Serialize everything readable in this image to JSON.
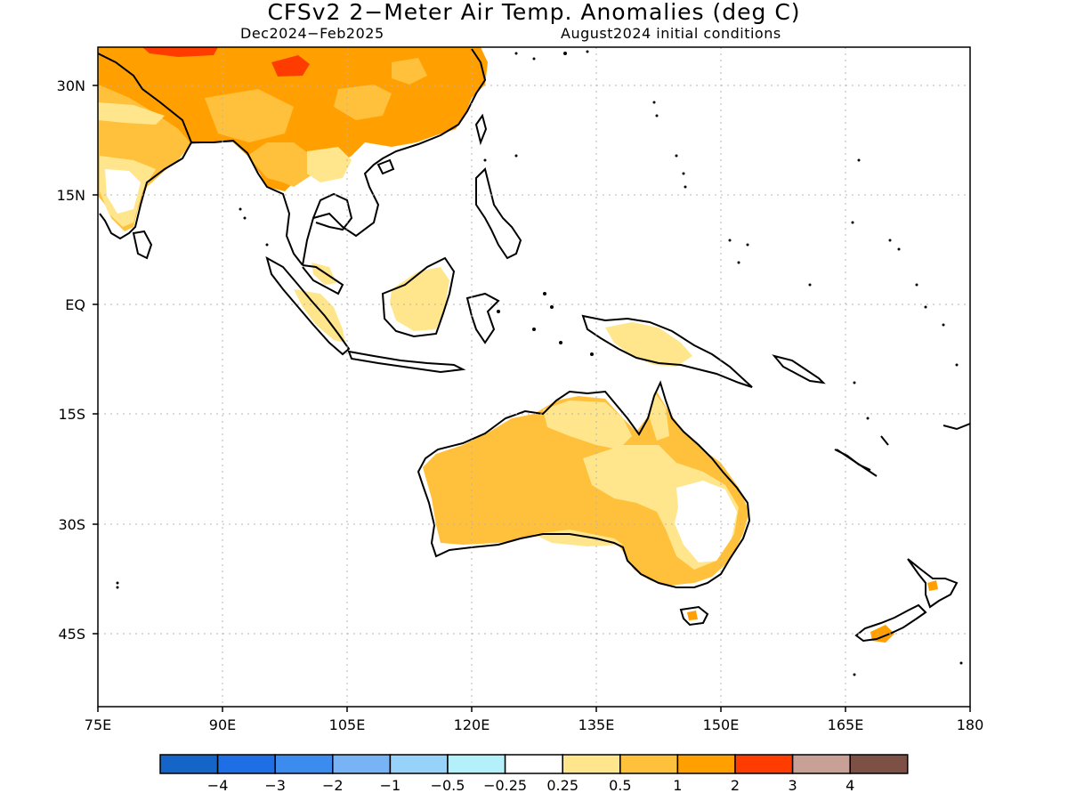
{
  "title": "CFSv2 2−Meter Air Temp. Anomalies (deg C)",
  "subtitle_left": "Dec2024−Feb2025",
  "subtitle_right": "August2024 initial conditions",
  "map": {
    "lat_labels": [
      "30N",
      "15N",
      "EQ",
      "15S",
      "30S",
      "45S"
    ],
    "lon_labels": [
      "75E",
      "90E",
      "105E",
      "120E",
      "135E",
      "150E",
      "165E",
      "180"
    ],
    "extent": {
      "lon_min": 75,
      "lon_max": 180,
      "lat_min": -55,
      "lat_max": 35
    }
  },
  "colorbar": {
    "tick_labels": [
      "−4",
      "−3",
      "−2",
      "−1",
      "−0.5",
      "−0.25",
      "0.25",
      "0.5",
      "1",
      "2",
      "3",
      "4"
    ],
    "colors": [
      "#1565c8",
      "#1e6ee6",
      "#3c8cf0",
      "#78b4f5",
      "#96d2fa",
      "#b4f0fa",
      "#ffffff",
      "#ffe68c",
      "#ffc03c",
      "#ffa000",
      "#ff3c00",
      "#c8a096",
      "#7d5046"
    ]
  }
}
